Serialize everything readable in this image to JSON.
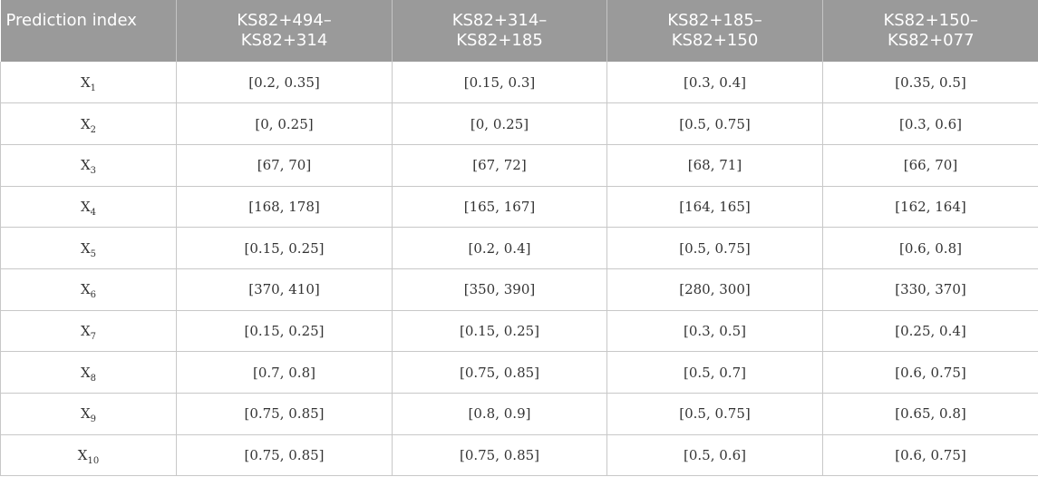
{
  "table": {
    "header": {
      "index_label": "Prediction index",
      "columns": [
        {
          "line1": "KS82+494–",
          "line2": "KS82+314"
        },
        {
          "line1": "KS82+314–",
          "line2": "KS82+185"
        },
        {
          "line1": "KS82+185–",
          "line2": "KS82+150"
        },
        {
          "line1": "KS82+150–",
          "line2": "KS82+077"
        }
      ]
    },
    "rows": [
      {
        "base": "X",
        "sub": "1",
        "cells": [
          "[0.2, 0.35]",
          "[0.15, 0.3]",
          "[0.3, 0.4]",
          "[0.35, 0.5]"
        ]
      },
      {
        "base": "X",
        "sub": "2",
        "cells": [
          "[0, 0.25]",
          "[0, 0.25]",
          "[0.5, 0.75]",
          "[0.3, 0.6]"
        ]
      },
      {
        "base": "X",
        "sub": "3",
        "cells": [
          "[67, 70]",
          "[67, 72]",
          "[68, 71]",
          "[66, 70]"
        ]
      },
      {
        "base": "X",
        "sub": "4",
        "cells": [
          "[168, 178]",
          "[165, 167]",
          "[164, 165]",
          "[162, 164]"
        ]
      },
      {
        "base": "X",
        "sub": "5",
        "cells": [
          "[0.15, 0.25]",
          "[0.2, 0.4]",
          "[0.5, 0.75]",
          "[0.6, 0.8]"
        ]
      },
      {
        "base": "X",
        "sub": "6",
        "cells": [
          "[370, 410]",
          "[350, 390]",
          "[280, 300]",
          "[330, 370]"
        ]
      },
      {
        "base": "X",
        "sub": "7",
        "cells": [
          "[0.15, 0.25]",
          "[0.15, 0.25]",
          "[0.3, 0.5]",
          "[0.25, 0.4]"
        ]
      },
      {
        "base": "X",
        "sub": "8",
        "cells": [
          "[0.7, 0.8]",
          "[0.75, 0.85]",
          "[0.5, 0.7]",
          "[0.6, 0.75]"
        ]
      },
      {
        "base": "X",
        "sub": "9",
        "cells": [
          "[0.75, 0.85]",
          "[0.8, 0.9]",
          "[0.5, 0.75]",
          "[0.65, 0.8]"
        ]
      },
      {
        "base": "X",
        "sub": "10",
        "cells": [
          "[0.75, 0.85]",
          "[0.75, 0.85]",
          "[0.5, 0.6]",
          "[0.6, 0.75]"
        ]
      }
    ]
  }
}
